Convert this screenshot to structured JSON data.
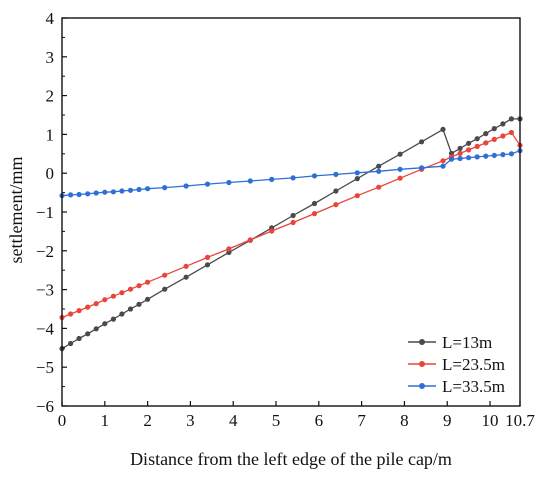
{
  "chart_data": {
    "type": "line",
    "xlabel": "Distance from the left edge of the pile cap/m",
    "ylabel": "settlement/mm",
    "xlim": [
      0,
      10.7
    ],
    "ylim": [
      -6,
      4
    ],
    "x_ticks": [
      0,
      1,
      2,
      3,
      4,
      5,
      6,
      7,
      8,
      9,
      10,
      10.7
    ],
    "x_tick_labels": [
      "0",
      "1",
      "2",
      "3",
      "4",
      "5",
      "6",
      "7",
      "8",
      "9",
      "10",
      "10.7"
    ],
    "y_ticks": [
      -6,
      -5,
      -4,
      -3,
      -2,
      -1,
      0,
      1,
      2,
      3,
      4
    ],
    "y_tick_labels": [
      "−6",
      "−5",
      "−4",
      "−3",
      "−2",
      "−1",
      "0",
      "1",
      "2",
      "3",
      "4"
    ],
    "grid": false,
    "legend_position": "bottom-right",
    "series": [
      {
        "name": "L=13m",
        "color": "#4a4a4a",
        "marker": "circle",
        "x": [
          0,
          0.2,
          0.4,
          0.6,
          0.8,
          1.0,
          1.2,
          1.4,
          1.6,
          1.8,
          2.0,
          2.4,
          2.9,
          3.4,
          3.9,
          4.4,
          4.9,
          5.4,
          5.9,
          6.4,
          6.9,
          7.4,
          7.9,
          8.4,
          8.9,
          9.1,
          9.3,
          9.5,
          9.7,
          9.9,
          10.1,
          10.3,
          10.5,
          10.7
        ],
        "y": [
          -4.52,
          -4.39,
          -4.26,
          -4.14,
          -4.01,
          -3.88,
          -3.76,
          -3.63,
          -3.5,
          -3.38,
          -3.25,
          -2.99,
          -2.68,
          -2.36,
          -2.04,
          -1.73,
          -1.41,
          -1.09,
          -0.78,
          -0.46,
          -0.14,
          0.18,
          0.49,
          0.81,
          1.13,
          0.51,
          0.64,
          0.77,
          0.89,
          1.02,
          1.15,
          1.27,
          1.4,
          1.4
        ]
      },
      {
        "name": "L=23.5m",
        "color": "#e8453c",
        "marker": "circle",
        "x": [
          0,
          0.2,
          0.4,
          0.6,
          0.8,
          1.0,
          1.2,
          1.4,
          1.6,
          1.8,
          2.0,
          2.4,
          2.9,
          3.4,
          3.9,
          4.4,
          4.9,
          5.4,
          5.9,
          6.4,
          6.9,
          7.4,
          7.9,
          8.4,
          8.9,
          9.1,
          9.3,
          9.5,
          9.7,
          9.9,
          10.1,
          10.3,
          10.5,
          10.7
        ],
        "y": [
          -3.72,
          -3.63,
          -3.54,
          -3.45,
          -3.36,
          -3.26,
          -3.17,
          -3.08,
          -2.99,
          -2.9,
          -2.81,
          -2.63,
          -2.4,
          -2.17,
          -1.95,
          -1.72,
          -1.49,
          -1.27,
          -1.04,
          -0.81,
          -0.58,
          -0.36,
          -0.13,
          0.1,
          0.32,
          0.42,
          0.51,
          0.6,
          0.69,
          0.78,
          0.87,
          0.96,
          1.05,
          0.72
        ]
      },
      {
        "name": "L=33.5m",
        "color": "#2f6fd6",
        "marker": "circle",
        "x": [
          0,
          0.2,
          0.4,
          0.6,
          0.8,
          1.0,
          1.2,
          1.4,
          1.6,
          1.8,
          2.0,
          2.4,
          2.9,
          3.4,
          3.9,
          4.4,
          4.9,
          5.4,
          5.9,
          6.4,
          6.9,
          7.4,
          7.9,
          8.4,
          8.9,
          9.1,
          9.3,
          9.5,
          9.7,
          9.9,
          10.1,
          10.3,
          10.5,
          10.7
        ],
        "y": [
          -0.58,
          -0.56,
          -0.55,
          -0.53,
          -0.51,
          -0.49,
          -0.48,
          -0.46,
          -0.44,
          -0.42,
          -0.4,
          -0.37,
          -0.33,
          -0.28,
          -0.24,
          -0.2,
          -0.16,
          -0.12,
          -0.07,
          -0.03,
          0.01,
          0.05,
          0.1,
          0.14,
          0.18,
          0.36,
          0.38,
          0.4,
          0.42,
          0.44,
          0.46,
          0.48,
          0.5,
          0.58
        ]
      }
    ]
  }
}
